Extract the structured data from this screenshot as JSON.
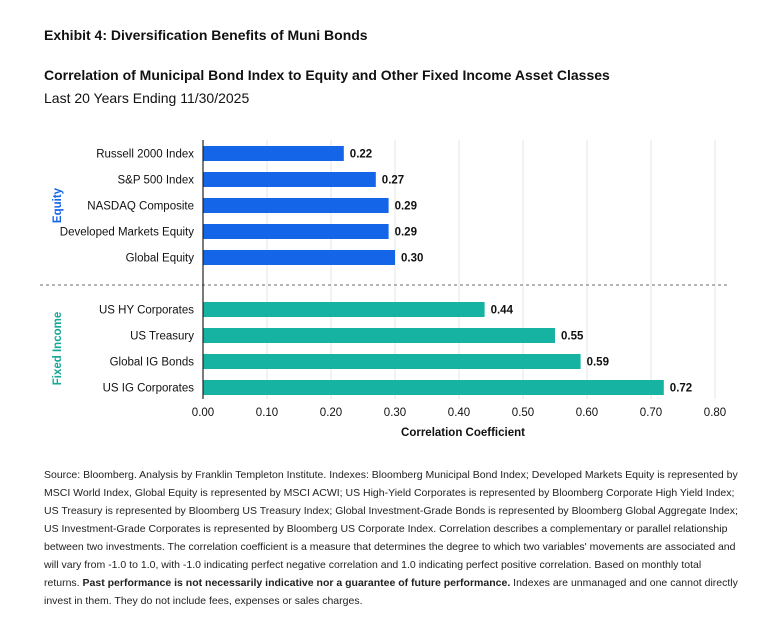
{
  "exhibit_title": "Exhibit 4: Diversification Benefits of Muni Bonds",
  "chart_title": "Correlation of Municipal Bond Index to Equity and Other Fixed Income Asset Classes",
  "chart_subtitle": "Last 20 Years Ending 11/30/2025",
  "colors": {
    "equity": "#1565E8",
    "fixed_income": "#16B3A3",
    "group_label_equity": "#1565E8",
    "group_label_fixed_income": "#14A896",
    "grid": "#e6e6e6",
    "axis": "#222222"
  },
  "chart_data": {
    "type": "bar",
    "orientation": "horizontal",
    "xlabel": "Correlation Coefficient",
    "xlim": [
      0,
      0.8
    ],
    "xticks": [
      "0.00",
      "0.10",
      "0.20",
      "0.30",
      "0.40",
      "0.50",
      "0.60",
      "0.70",
      "0.80"
    ],
    "grid": "vertical",
    "groups": [
      {
        "name": "Equity",
        "categories": [
          "Russell 2000 Index",
          "S&P 500 Index",
          "NASDAQ Composite",
          "Developed Markets Equity",
          "Global Equity"
        ],
        "values": [
          0.22,
          0.27,
          0.29,
          0.29,
          0.3
        ],
        "value_labels": [
          "0.22",
          "0.27",
          "0.29",
          "0.29",
          "0.30"
        ]
      },
      {
        "name": "Fixed Income",
        "categories": [
          "US HY Corporates",
          "US Treasury",
          "Global IG Bonds",
          "US IG Corporates"
        ],
        "values": [
          0.44,
          0.55,
          0.59,
          0.72
        ],
        "value_labels": [
          "0.44",
          "0.55",
          "0.59",
          "0.72"
        ]
      }
    ]
  },
  "footnote": {
    "text": "Source: Bloomberg. Analysis by Franklin Templeton Institute. Indexes: Bloomberg Municipal Bond Index; Developed Markets Equity is represented by MSCI World Index, Global Equity is represented by MSCI ACWI; US High-Yield Corporates is represented by Bloomberg Corporate High Yield Index; US Treasury is represented by Bloomberg US Treasury Index; Global Investment-Grade Bonds is represented by Bloomberg Global Aggregate Index; US Investment-Grade Corporates is represented by Bloomberg US Corporate Index. Correlation describes a complementary or parallel relationship between two investments. The correlation coefficient is a measure that determines the degree to which two variables' movements are associated and will vary from -1.0 to 1.0, with -1.0 indicating perfect negative correlation and 1.0 indicating perfect positive correlation. Based on monthly total returns. ",
    "bold": "Past performance is not necessarily indicative nor a guarantee of future performance.",
    "tail": " Indexes are unmanaged and one cannot directly invest in them. They do not include fees, expenses or sales charges."
  }
}
